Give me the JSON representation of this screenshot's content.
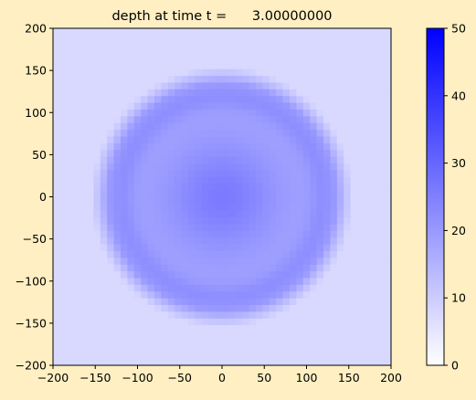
{
  "figure": {
    "background": "#ffefc2"
  },
  "chart_data": {
    "type": "heatmap",
    "title": "depth at time t =      3.00000000",
    "xlabel": "",
    "ylabel": "",
    "xlim": [
      -200,
      200
    ],
    "ylim": [
      -200,
      200
    ],
    "x_ticks": [
      -200,
      -150,
      -100,
      -50,
      0,
      50,
      100,
      150,
      200
    ],
    "y_ticks": [
      -200,
      -150,
      -100,
      -50,
      0,
      50,
      100,
      150,
      200
    ],
    "grid": false,
    "field": {
      "description_free": true,
      "grid_cells": 50,
      "background_depth": 7.5,
      "center_depth": 26,
      "center_radius": 60,
      "ring_depth": 22,
      "ring_radius": 120,
      "ring_width": 16,
      "trough_depth": 18,
      "outer_edge_radius": 145
    },
    "colorbar": {
      "vmin": 0,
      "vmax": 50,
      "ticks": [
        0,
        10,
        20,
        30,
        40,
        50
      ],
      "colormap": [
        "#ffffff",
        "#0000ff"
      ],
      "placement": "right"
    }
  }
}
